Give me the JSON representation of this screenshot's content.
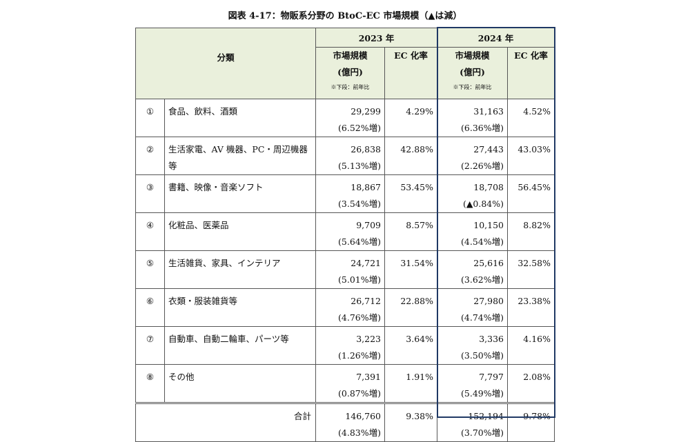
{
  "title": "図表 4-17：物販系分野の BtoC-EC 市場規模（▲は減）",
  "header": {
    "category": "分類",
    "years": [
      {
        "year": "2023 年",
        "market_size": "市場規模",
        "unit": "(億円)",
        "note": "※下段：前年比",
        "ec_rate": "EC 化率"
      },
      {
        "year": "2024 年",
        "market_size": "市場規模",
        "unit": "(億円)",
        "note": "※下段：前年比",
        "ec_rate": "EC 化率"
      }
    ]
  },
  "rows": [
    {
      "no": "①",
      "name": "食品、飲料、酒類",
      "y2023": {
        "size": "29,299",
        "growth": "(6.52%増)",
        "ec": "4.29%"
      },
      "y2024": {
        "size": "31,163",
        "growth": "(6.36%増)",
        "ec": "4.52%"
      }
    },
    {
      "no": "②",
      "name": "生活家電、AV 機器、PC・周辺機器等",
      "y2023": {
        "size": "26,838",
        "growth": "(5.13%増)",
        "ec": "42.88%"
      },
      "y2024": {
        "size": "27,443",
        "growth": "(2.26%増)",
        "ec": "43.03%"
      }
    },
    {
      "no": "③",
      "name": "書籍、映像・音楽ソフト",
      "y2023": {
        "size": "18,867",
        "growth": "(3.54%増)",
        "ec": "53.45%"
      },
      "y2024": {
        "size": "18,708",
        "growth": "(▲0.84%)",
        "ec": "56.45%"
      }
    },
    {
      "no": "④",
      "name": "化粧品、医薬品",
      "y2023": {
        "size": "9,709",
        "growth": "(5.64%増)",
        "ec": "8.57%"
      },
      "y2024": {
        "size": "10,150",
        "growth": "(4.54%増)",
        "ec": "8.82%"
      }
    },
    {
      "no": "⑤",
      "name": "生活雑貨、家具、インテリア",
      "y2023": {
        "size": "24,721",
        "growth": "(5.01%増)",
        "ec": "31.54%"
      },
      "y2024": {
        "size": "25,616",
        "growth": "(3.62%増)",
        "ec": "32.58%"
      }
    },
    {
      "no": "⑥",
      "name": "衣類・服装雑貨等",
      "y2023": {
        "size": "26,712",
        "growth": "(4.76%増)",
        "ec": "22.88%"
      },
      "y2024": {
        "size": "27,980",
        "growth": "(4.74%増)",
        "ec": "23.38%"
      }
    },
    {
      "no": "⑦",
      "name": "自動車、自動二輪車、パーツ等",
      "y2023": {
        "size": "3,223",
        "growth": "(1.26%増)",
        "ec": "3.64%"
      },
      "y2024": {
        "size": "3,336",
        "growth": "(3.50%増)",
        "ec": "4.16%"
      }
    },
    {
      "no": "⑧",
      "name": "その他",
      "y2023": {
        "size": "7,391",
        "growth": "(0.87%増)",
        "ec": "1.91%"
      },
      "y2024": {
        "size": "7,797",
        "growth": "(5.49%増)",
        "ec": "2.08%"
      }
    }
  ],
  "total": {
    "label": "合計",
    "y2023": {
      "size": "146,760",
      "growth": "(4.83%増)",
      "ec": "9.38%"
    },
    "y2024": {
      "size": "152,194",
      "growth": "(3.70%増)",
      "ec": "9.78%"
    }
  }
}
